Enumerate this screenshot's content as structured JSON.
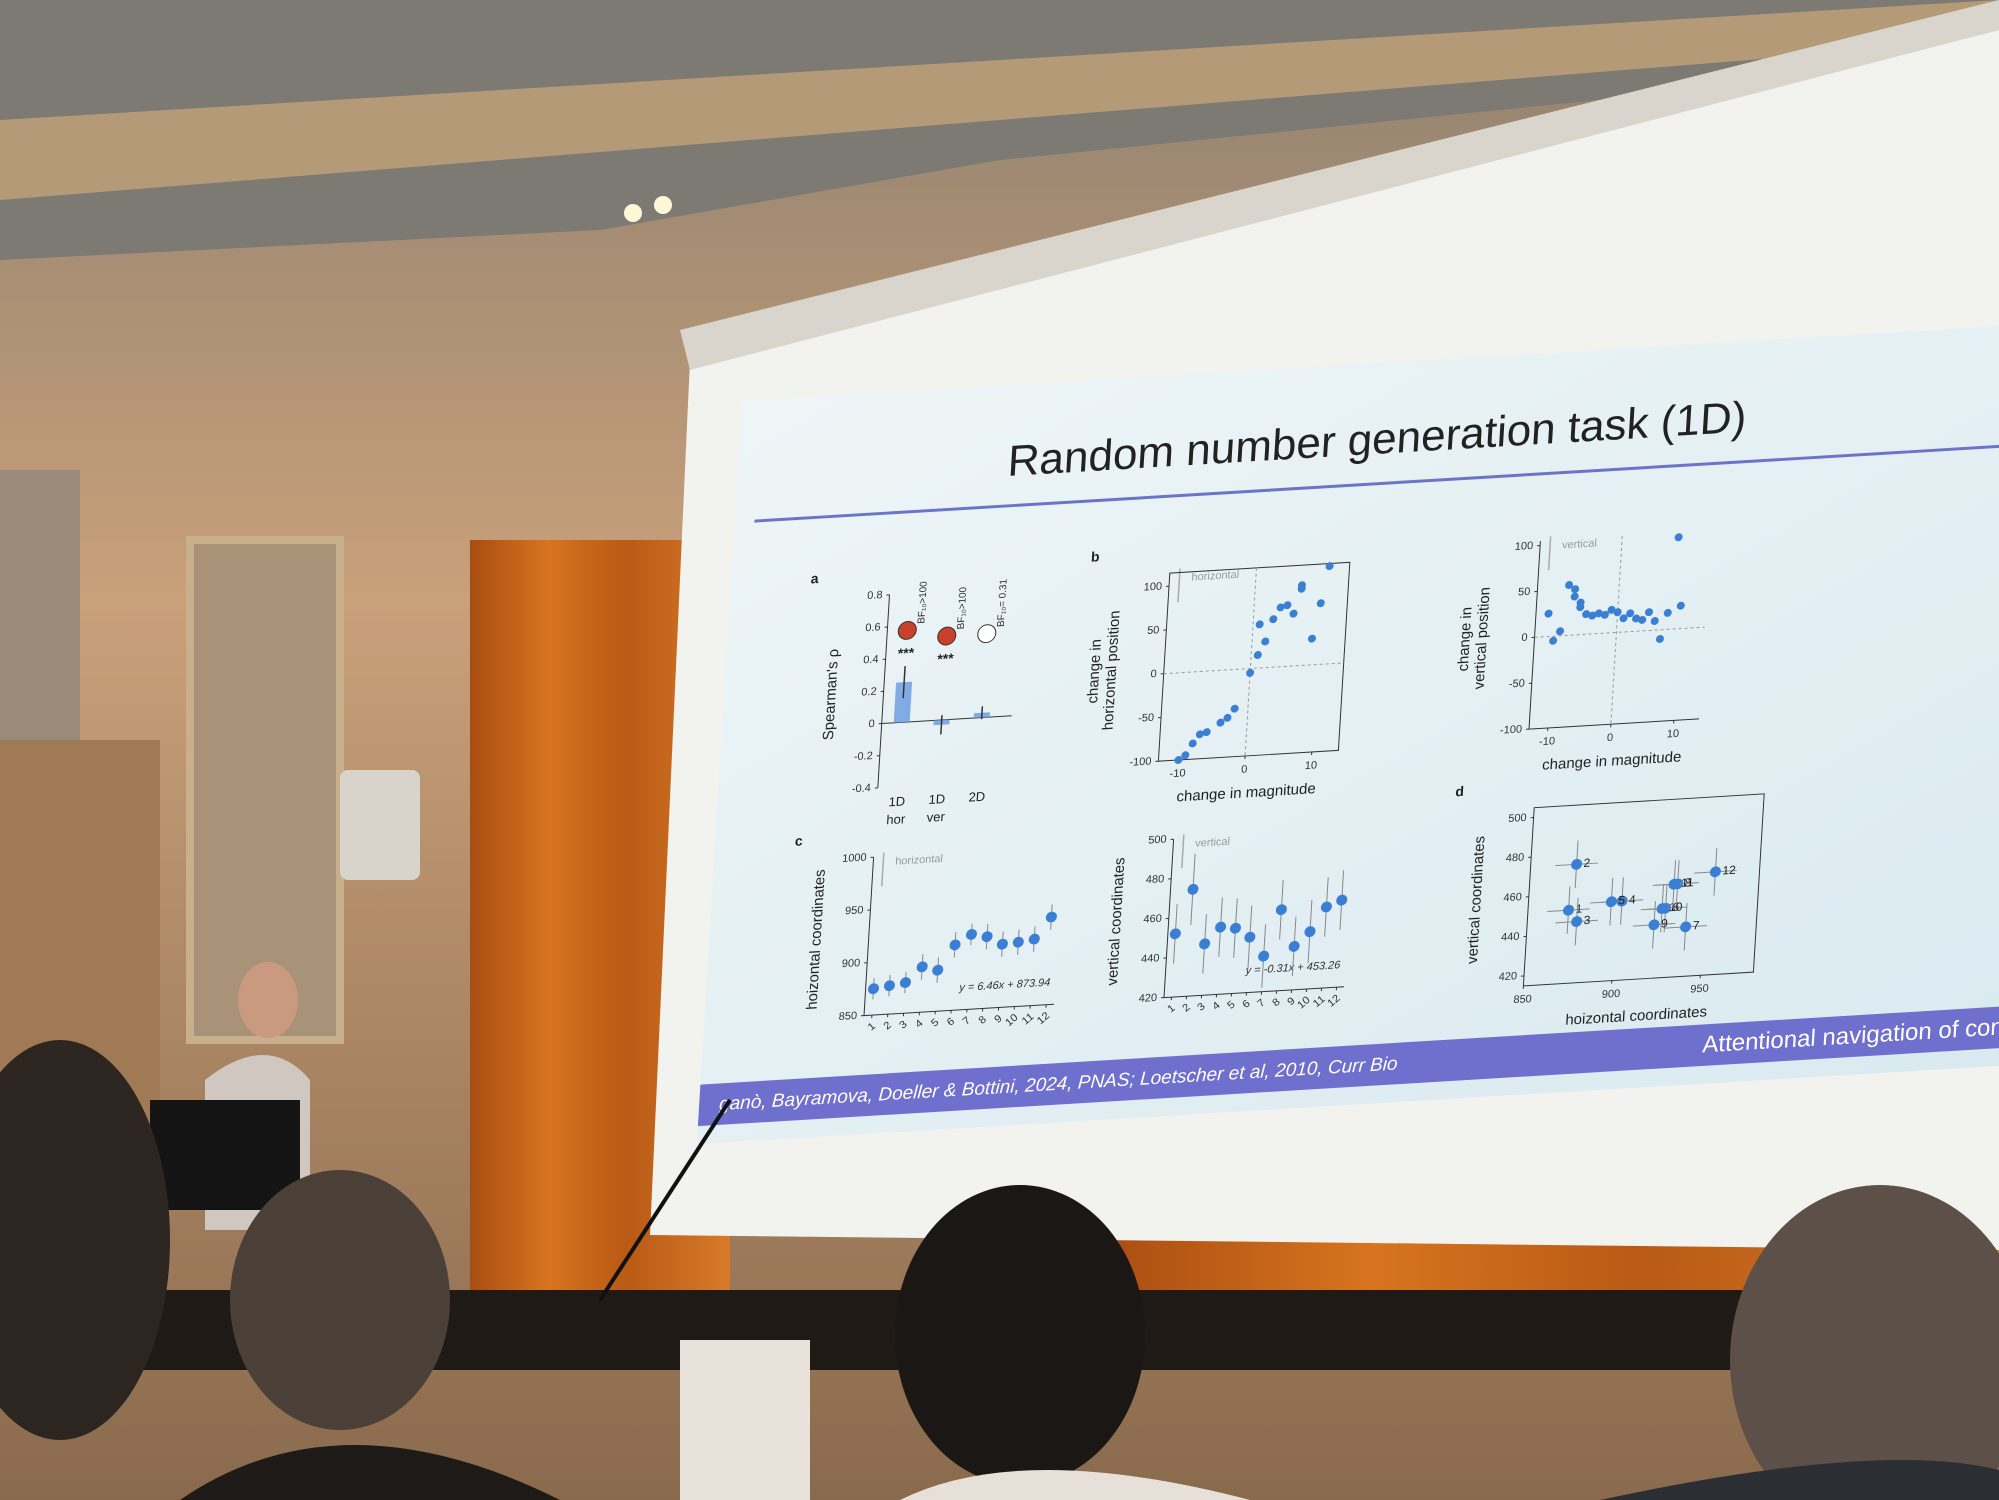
{
  "slide": {
    "title": "Random number generation task (1D)",
    "footer_left": "ganò, Bayramova, Doeller & Bottini, 2024, PNAS; Loetscher et al, 2010, Curr Bio",
    "footer_right": "Attentional navigation of concept",
    "panels": [
      {
        "type": "bar",
        "label": "a",
        "ylabel": [
          "Spearman's ρ"
        ],
        "color": "#6f9fe0",
        "categories": [
          "1D",
          "1D",
          "2D"
        ],
        "sublabels": [
          "hor",
          "ver",
          null
        ],
        "values": [
          0.25,
          -0.03,
          0.03
        ],
        "errors": [
          0.1,
          0.06,
          0.04
        ],
        "stars": [
          "***",
          "***",
          null
        ],
        "bf_labels": [
          "BF₁₀>100",
          "BF₁₀>100",
          "BF₁₀= 0.31"
        ],
        "ylim": [
          -0.4,
          0.8
        ],
        "yticks": [
          -0.4,
          -0.2,
          0,
          0.2,
          0.4,
          0.6,
          0.8
        ]
      },
      {
        "type": "scatter",
        "label": "b",
        "xlabel": "change in magnitude",
        "ylabel": [
          "change in",
          "horizontal position"
        ],
        "arrow_label": "horizontal",
        "color": "#3b7fd4",
        "frame": true,
        "zero_lines": true,
        "xlim": [
          -13,
          14
        ],
        "ylim": [
          -100,
          115
        ],
        "xticks": [
          -10,
          0,
          10
        ],
        "yticks": [
          -100,
          -50,
          0,
          50,
          100
        ],
        "x": [
          -10,
          -9,
          -8,
          -7,
          -6,
          -4,
          -3,
          -2,
          0,
          1,
          1,
          2,
          3,
          4,
          5,
          6,
          7,
          7,
          9,
          10,
          11
        ],
        "y": [
          -100,
          -95,
          -82,
          -72,
          -70,
          -60,
          -55,
          -45,
          -5,
          15,
          50,
          30,
          55,
          68,
          70,
          60,
          88,
          92,
          30,
          70,
          112
        ]
      },
      {
        "type": "scatter",
        "xlabel": "change in magnitude",
        "ylabel": [
          "change in",
          "vertical position"
        ],
        "arrow_label": "vertical",
        "color": "#3b7fd4",
        "frame": false,
        "zero_lines": true,
        "xlim": [
          -13,
          14
        ],
        "ylim": [
          -100,
          105
        ],
        "xticks": [
          -10,
          0,
          10
        ],
        "yticks": [
          -100,
          -50,
          0,
          50,
          100
        ],
        "x": [
          -11,
          -10,
          -9,
          -8,
          -7,
          -7,
          -6,
          -6,
          -5,
          -4,
          -3,
          -2,
          -1,
          0,
          1,
          2,
          3,
          4,
          5,
          6,
          7,
          8,
          9,
          10
        ],
        "y": [
          25,
          -5,
          5,
          55,
          50,
          42,
          35,
          30,
          22,
          20,
          22,
          20,
          25,
          22,
          15,
          20,
          14,
          12,
          20,
          10,
          -10,
          18,
          100,
          25
        ]
      },
      {
        "type": "scatter",
        "label": "c",
        "ylabel": [
          "hoizontal coordinates"
        ],
        "arrow_label": "horizontal",
        "equation": "y = 6.46x + 873.94",
        "color": "#3b7fd4",
        "frame": false,
        "xlim": [
          0.5,
          12.5
        ],
        "ylim": [
          850,
          1000
        ],
        "xticks": [
          1,
          2,
          3,
          4,
          5,
          6,
          7,
          8,
          9,
          10,
          11,
          12
        ],
        "yticks": [
          850,
          900,
          950,
          1000
        ],
        "x": [
          1,
          2,
          3,
          4,
          5,
          6,
          7,
          8,
          9,
          10,
          11,
          12
        ],
        "y": [
          875,
          877,
          879,
          893,
          889,
          912,
          921,
          918,
          910,
          911,
          913,
          933
        ],
        "yerr": [
          10,
          10,
          10,
          12,
          12,
          12,
          10,
          12,
          12,
          12,
          12,
          12
        ]
      },
      {
        "type": "scatter",
        "ylabel": [
          "vertical coordinates"
        ],
        "arrow_label": "vertical",
        "equation": "y = -0.31x + 453.26",
        "color": "#3b7fd4",
        "frame": false,
        "xlim": [
          0.5,
          12.5
        ],
        "ylim": [
          420,
          500
        ],
        "xticks": [
          1,
          2,
          3,
          4,
          5,
          6,
          7,
          8,
          9,
          10,
          11,
          12
        ],
        "yticks": [
          420,
          440,
          460,
          480,
          500
        ],
        "x": [
          1,
          2,
          3,
          4,
          5,
          6,
          7,
          8,
          9,
          10,
          11,
          12
        ],
        "y": [
          452,
          474,
          446,
          454,
          453,
          448,
          438,
          461,
          442,
          449,
          461,
          464
        ],
        "yerr": [
          15,
          18,
          15,
          15,
          15,
          16,
          16,
          15,
          15,
          16,
          15,
          15
        ]
      },
      {
        "type": "scatter",
        "label": "d",
        "xlabel": "hoizontal coordinates",
        "ylabel": [
          "vertical coordinates"
        ],
        "color": "#3b7fd4",
        "frame": true,
        "xlim": [
          850,
          980
        ],
        "ylim": [
          415,
          505
        ],
        "xticks": [
          850,
          900,
          950
        ],
        "yticks": [
          420,
          440,
          460,
          480,
          500
        ],
        "x": [
          873,
          876,
          878,
          903,
          897,
          928,
          940,
          934,
          922,
          926,
          932,
          955
        ],
        "y": [
          452,
          475,
          446,
          455,
          455,
          450,
          440,
          462,
          442,
          450,
          462,
          467
        ],
        "xerr": [
          12,
          12,
          12,
          12,
          12,
          12,
          12,
          12,
          12,
          12,
          12,
          12
        ],
        "yerr": [
          12,
          12,
          12,
          12,
          12,
          12,
          12,
          12,
          12,
          12,
          12,
          12
        ],
        "point_labels": [
          "1",
          "2",
          "3",
          "4",
          "5",
          "6",
          "7",
          "8",
          "9",
          "10",
          "11",
          "12"
        ]
      }
    ]
  }
}
